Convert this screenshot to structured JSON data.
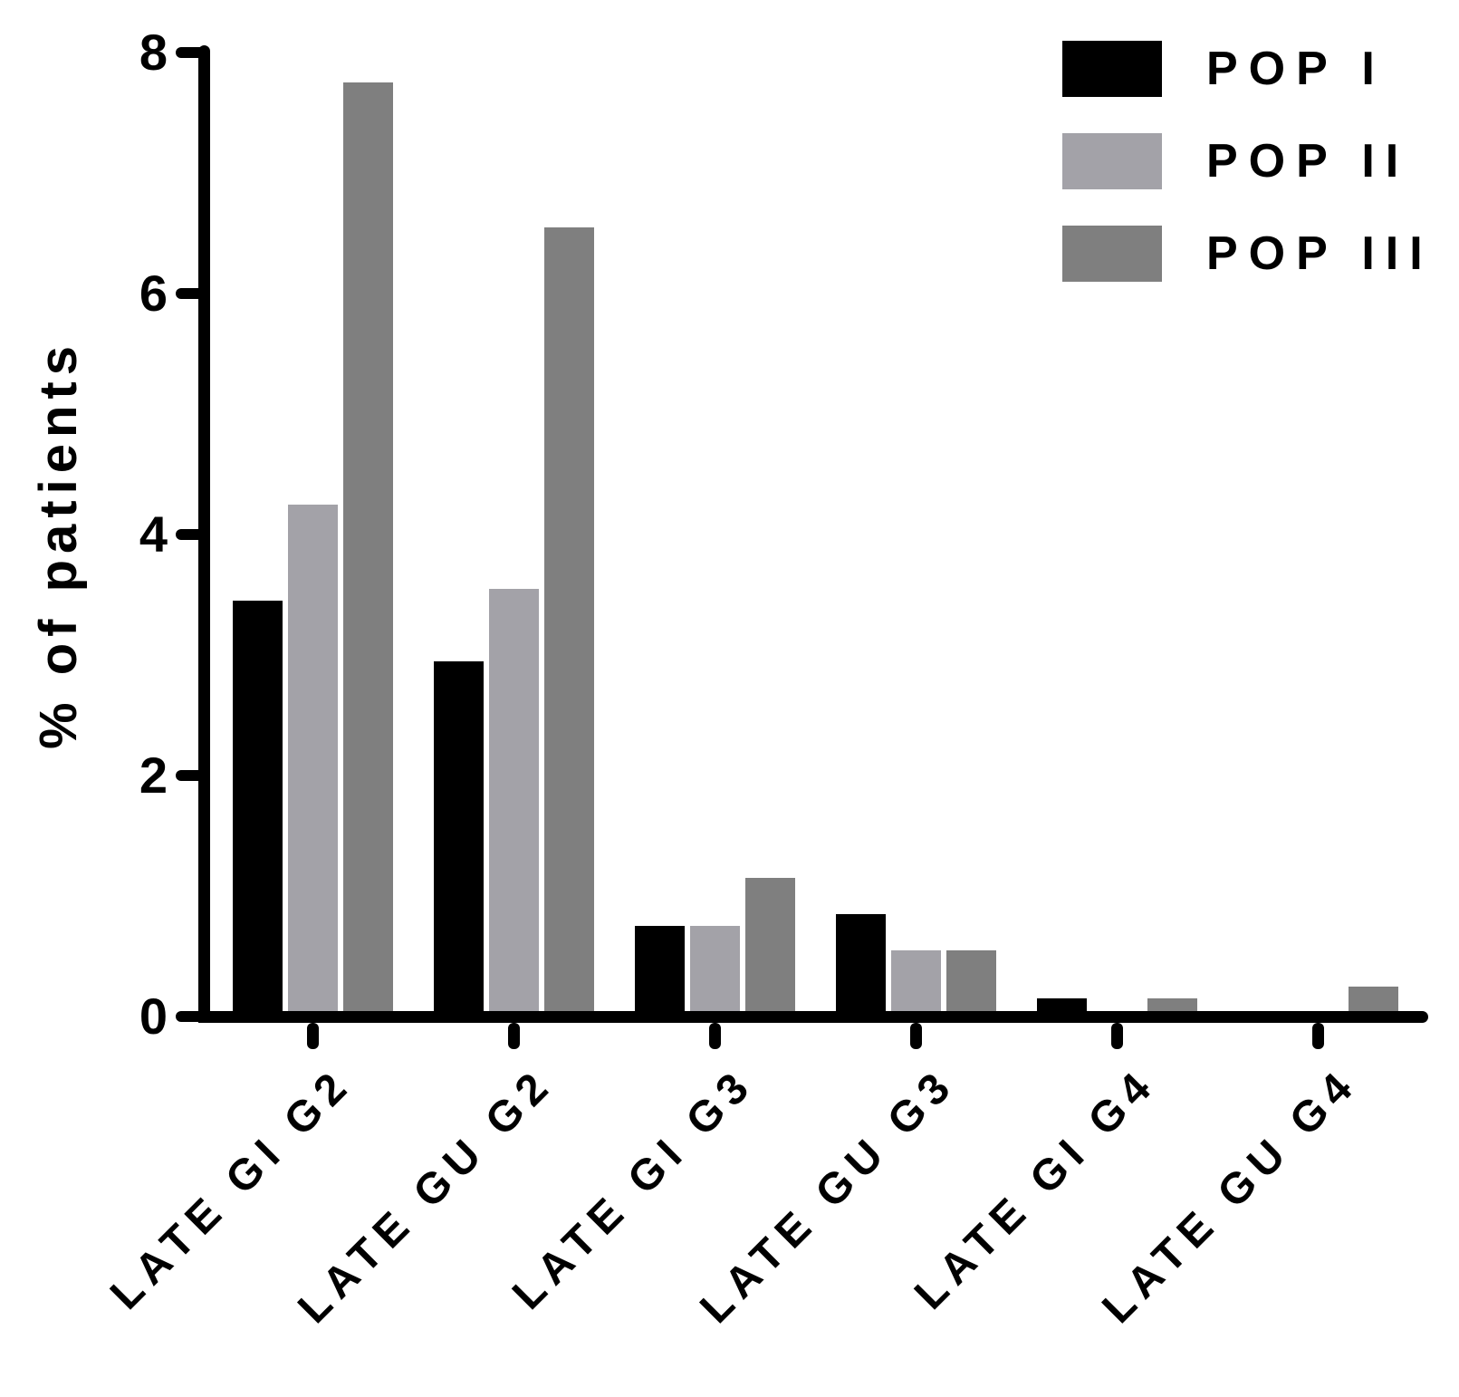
{
  "chart_data": {
    "type": "bar",
    "title": "",
    "xlabel": "",
    "ylabel": "% of patients",
    "ylim": [
      0,
      8
    ],
    "yticks": [
      0,
      2,
      4,
      6,
      8
    ],
    "grid": false,
    "legend_position": "upper-right",
    "categories": [
      "LATE GI G2",
      "LATE GU G2",
      "LATE GI G3",
      "LATE GU G3",
      "LATE GI G4",
      "LATE GU G4"
    ],
    "series": [
      {
        "name": "POP I",
        "color": "#000000",
        "values": [
          3.45,
          2.95,
          0.75,
          0.85,
          0.15,
          0
        ]
      },
      {
        "name": "POP II",
        "color": "#a3a2a8",
        "values": [
          4.25,
          3.55,
          0.75,
          0.55,
          0,
          0
        ]
      },
      {
        "name": "POP III",
        "color": "#7f7f7f",
        "values": [
          7.75,
          6.55,
          1.15,
          0.55,
          0.15,
          0.25
        ]
      }
    ]
  }
}
